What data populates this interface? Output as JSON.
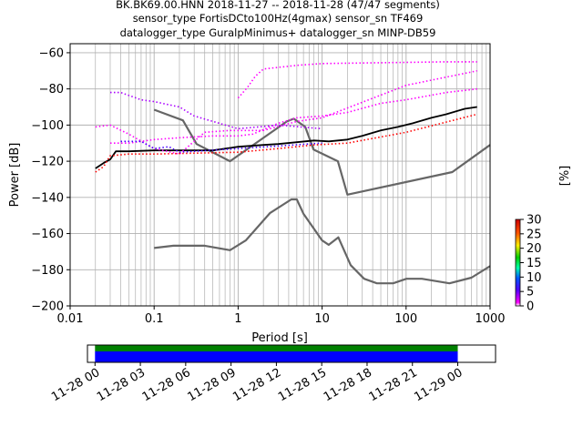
{
  "title_lines": [
    "BK.BK69.00.HNN   2018-11-27 -- 2018-11-28  (47/47 segments)",
    "sensor_type FortisDCto100Hz(4gmax) sensor_sn TF469",
    "datalogger_type GuralpMinimus+ datalogger_sn MINP-DB59"
  ],
  "chart_data": {
    "type": "line",
    "xlabel": "Period [s]",
    "ylabel": "Power [dB]",
    "xscale": "log",
    "xlim": [
      0.01,
      1000
    ],
    "ylim": [
      -200,
      -55
    ],
    "xticks": [
      {
        "value": 0.01,
        "label": "0.01"
      },
      {
        "value": 0.1,
        "label": "0.1"
      },
      {
        "value": 1,
        "label": "1"
      },
      {
        "value": 10,
        "label": "10"
      },
      {
        "value": 100,
        "label": "100"
      },
      {
        "value": 1000,
        "label": "1000"
      }
    ],
    "yticks": [
      {
        "value": -60,
        "label": "−60"
      },
      {
        "value": -80,
        "label": "−80"
      },
      {
        "value": -100,
        "label": "−100"
      },
      {
        "value": -120,
        "label": "−120"
      },
      {
        "value": -140,
        "label": "−140"
      },
      {
        "value": -160,
        "label": "−160"
      },
      {
        "value": -180,
        "label": "−180"
      },
      {
        "value": -200,
        "label": "−200"
      }
    ],
    "grid": true,
    "series": [
      {
        "role": "new-high-noise-model",
        "color": "#666666",
        "x": [
          0.1,
          0.22,
          0.32,
          0.8,
          3.8,
          4.6,
          6.3,
          7.9,
          15.4,
          20,
          354.8,
          1000
        ],
        "y": [
          -91.5,
          -97.4,
          -110.5,
          -120,
          -98,
          -96.5,
          -101,
          -113.5,
          -120,
          -138.5,
          -126,
          -111
        ]
      },
      {
        "role": "new-low-noise-model",
        "color": "#666666",
        "x": [
          0.1,
          0.17,
          0.4,
          0.8,
          1.24,
          2.4,
          4.3,
          5,
          6,
          10,
          12,
          15.6,
          21.9,
          31.6,
          45,
          70,
          101,
          154,
          328,
          600,
          1000
        ],
        "y": [
          -168,
          -166.7,
          -166.7,
          -169.2,
          -163.7,
          -148.6,
          -141.1,
          -141.1,
          -149,
          -163.8,
          -166.2,
          -162.1,
          -177.5,
          -185,
          -187.5,
          -187.5,
          -185,
          -185,
          -187.5,
          -184.4,
          -178
        ]
      },
      {
        "role": "mode",
        "color": "#000000",
        "x": [
          0.02,
          0.025,
          0.03,
          0.035,
          0.05,
          0.1,
          0.2,
          0.5,
          1,
          2,
          3,
          5,
          8,
          12,
          20,
          30,
          50,
          80,
          120,
          200,
          300,
          500,
          700
        ],
        "y": [
          -124,
          -121,
          -119,
          -114.5,
          -114.5,
          -114,
          -114,
          -114,
          -112,
          -111,
          -110.5,
          -109.5,
          -108.5,
          -109,
          -108,
          -106,
          -103,
          -101,
          -99,
          -96,
          -94,
          -91,
          -90
        ]
      },
      {
        "role": "pdf-upper-magenta",
        "color": "#ff00ff",
        "x": [
          0.03,
          0.05,
          0.1,
          0.2,
          0.5,
          1,
          1.5,
          3,
          5,
          10,
          20,
          50,
          100,
          300,
          700
        ],
        "y": [
          -110,
          -110,
          -108,
          -107,
          -106,
          -106,
          -105,
          -99,
          -96,
          -95,
          -93,
          -88,
          -86,
          -82,
          -80
        ]
      },
      {
        "role": "pdf-top-magenta",
        "color": "#ff00ff",
        "x": [
          1,
          1.3,
          1.6,
          2,
          5,
          10,
          50,
          300,
          700
        ],
        "y": [
          -85,
          -79,
          -73,
          -69,
          -67,
          -66,
          -65.5,
          -65,
          -65
        ]
      },
      {
        "role": "pdf-mid-magenta",
        "color": "#ff00ff",
        "x": [
          0.02,
          0.03,
          0.05,
          0.1,
          0.2,
          0.4,
          0.8,
          2,
          5,
          10,
          100,
          700
        ],
        "y": [
          -101,
          -100,
          -105,
          -113,
          -116,
          -104,
          -103,
          -103,
          -98,
          -96,
          -78,
          -70
        ]
      },
      {
        "role": "pdf-violet",
        "color": "#aa00ff",
        "x": [
          0.03,
          0.04,
          0.07,
          0.1,
          0.2,
          0.3,
          1,
          3,
          10
        ],
        "y": [
          -82,
          -82,
          -86,
          -87,
          -90,
          -95,
          -102,
          -100,
          -102
        ]
      },
      {
        "role": "pdf-blue",
        "color": "#4400ff",
        "x": [
          0.04,
          0.07,
          0.1,
          0.15,
          0.2,
          1,
          10
        ],
        "y": [
          -109,
          -109,
          -113,
          -112,
          -115,
          -113,
          -110
        ]
      },
      {
        "role": "pdf-lower-red",
        "color": "#ff0000",
        "x": [
          0.02,
          0.025,
          0.03,
          0.05,
          0.1,
          1,
          3,
          8,
          20,
          100,
          700
        ],
        "y": [
          -126,
          -123,
          -117,
          -116,
          -116,
          -115,
          -113,
          -111,
          -110,
          -104,
          -94
        ]
      }
    ],
    "colorbar": {
      "label": "[%]",
      "range": [
        0,
        30
      ],
      "ticks": [
        "0",
        "5",
        "10",
        "15",
        "20",
        "25",
        "30"
      ]
    },
    "coverage": {
      "x_range": [
        "2018-11-27 23:30",
        "2018-11-29 02:30"
      ],
      "data_range": [
        "2018-11-28 00:00",
        "2018-11-29 00:00"
      ],
      "green_color": "#008000",
      "blue_color": "#0000ff",
      "ticks": [
        "11-28 00",
        "11-28 03",
        "11-28 06",
        "11-28 09",
        "11-28 12",
        "11-28 15",
        "11-28 18",
        "11-28 21",
        "11-29 00"
      ]
    }
  }
}
